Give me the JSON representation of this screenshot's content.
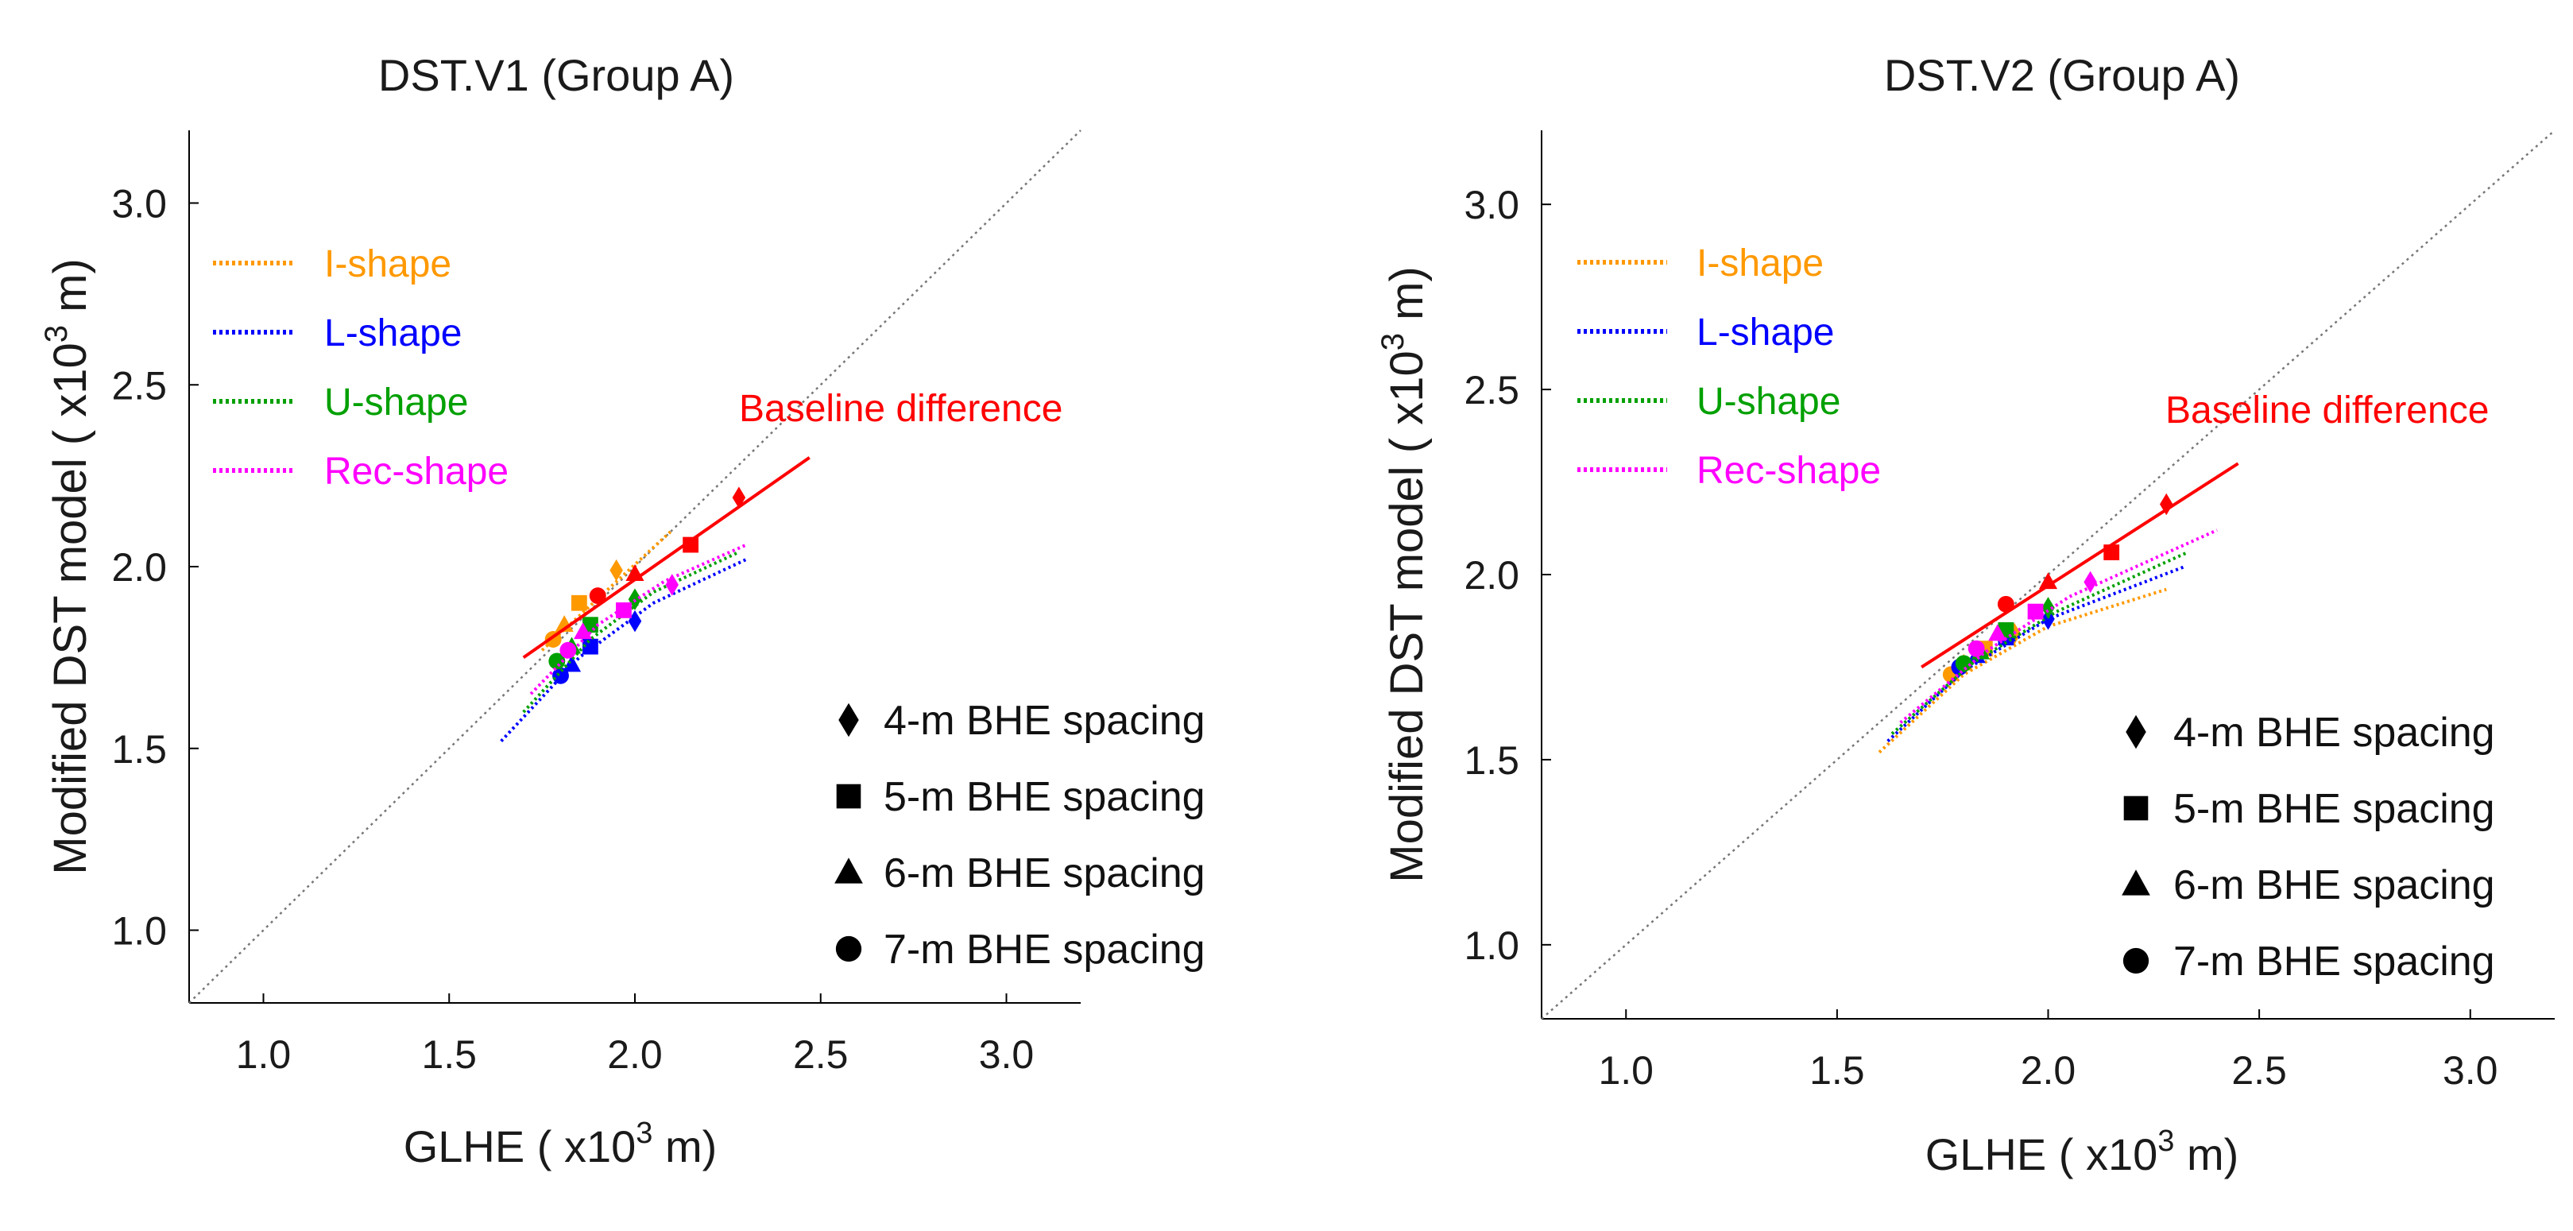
{
  "chart_data": [
    {
      "type": "scatter",
      "title": "DST.V1 (Group A)",
      "xlabel": {
        "base": "GLHE ( x10",
        "exp": "3",
        "unit": " m)"
      },
      "ylabel": {
        "base": "Modified DST model ( x10",
        "exp": "3",
        "unit": " m)"
      },
      "xlim": [
        0.8,
        3.2
      ],
      "ylim": [
        0.8,
        3.2
      ],
      "xticks": [
        1.0,
        1.5,
        2.0,
        2.5,
        3.0
      ],
      "yticks": [
        1.0,
        1.5,
        2.0,
        2.5,
        3.0
      ],
      "xtick_labels": [
        "1.0",
        "1.5",
        "2.0",
        "2.5",
        "3.0"
      ],
      "ytick_labels": [
        "1.0",
        "1.5",
        "2.0",
        "2.5",
        "3.0"
      ],
      "grid": false,
      "identity_line": true,
      "shape_legend": [
        {
          "label": "I-shape",
          "color": "#ff9900"
        },
        {
          "label": "L-shape",
          "color": "#0000ff"
        },
        {
          "label": "U-shape",
          "color": "#00a000"
        },
        {
          "label": "Rec-shape",
          "color": "#ff00ff"
        }
      ],
      "spacing_legend": [
        {
          "label": "4-m BHE spacing",
          "marker": "diamond"
        },
        {
          "label": "5-m BHE spacing",
          "marker": "square"
        },
        {
          "label": "6-m BHE spacing",
          "marker": "triangle"
        },
        {
          "label": "7-m BHE spacing",
          "marker": "circle"
        }
      ],
      "baseline": {
        "label": "Baseline difference",
        "color": "#ff0000",
        "line": [
          [
            1.7,
            1.75
          ],
          [
            2.47,
            2.3
          ]
        ],
        "points": [
          {
            "x": 2.28,
            "y": 2.19,
            "marker": "diamond"
          },
          {
            "x": 2.15,
            "y": 2.06,
            "marker": "square"
          },
          {
            "x": 2.0,
            "y": 1.98,
            "marker": "triangle"
          },
          {
            "x": 1.9,
            "y": 1.92,
            "marker": "circle"
          }
        ]
      },
      "series": [
        {
          "name": "I-shape",
          "color": "#ff9900",
          "fit": [
            [
              1.75,
              1.77
            ],
            [
              2.1,
              2.1
            ]
          ],
          "points": [
            {
              "x": 1.95,
              "y": 1.99,
              "marker": "diamond"
            },
            {
              "x": 1.85,
              "y": 1.9,
              "marker": "square"
            },
            {
              "x": 1.81,
              "y": 1.84,
              "marker": "triangle"
            },
            {
              "x": 1.78,
              "y": 1.8,
              "marker": "circle"
            }
          ]
        },
        {
          "name": "L-shape",
          "color": "#0000ff",
          "fit": [
            [
              1.64,
              1.52
            ],
            [
              1.85,
              1.75
            ],
            [
              2.05,
              1.9
            ],
            [
              2.3,
              2.02
            ]
          ],
          "points": [
            {
              "x": 2.0,
              "y": 1.85,
              "marker": "diamond"
            },
            {
              "x": 1.88,
              "y": 1.78,
              "marker": "square"
            },
            {
              "x": 1.83,
              "y": 1.73,
              "marker": "triangle"
            },
            {
              "x": 1.8,
              "y": 1.7,
              "marker": "circle"
            }
          ]
        },
        {
          "name": "U-shape",
          "color": "#00a000",
          "fit": [
            [
              1.7,
              1.6
            ],
            [
              1.88,
              1.8
            ],
            [
              2.05,
              1.93
            ],
            [
              2.28,
              2.04
            ]
          ],
          "points": [
            {
              "x": 2.0,
              "y": 1.91,
              "marker": "diamond"
            },
            {
              "x": 1.88,
              "y": 1.84,
              "marker": "square"
            },
            {
              "x": 1.83,
              "y": 1.78,
              "marker": "triangle"
            },
            {
              "x": 1.79,
              "y": 1.74,
              "marker": "circle"
            }
          ]
        },
        {
          "name": "Rec-shape",
          "color": "#ff00ff",
          "fit": [
            [
              1.72,
              1.65
            ],
            [
              1.9,
              1.84
            ],
            [
              2.08,
              1.96
            ],
            [
              2.3,
              2.06
            ]
          ],
          "points": [
            {
              "x": 2.1,
              "y": 1.95,
              "marker": "diamond"
            },
            {
              "x": 1.97,
              "y": 1.88,
              "marker": "square"
            },
            {
              "x": 1.86,
              "y": 1.82,
              "marker": "triangle"
            },
            {
              "x": 1.82,
              "y": 1.77,
              "marker": "circle"
            }
          ]
        }
      ]
    },
    {
      "type": "scatter",
      "title": "DST.V2 (Group A)",
      "xlabel": {
        "base": "GLHE ( x10",
        "exp": "3",
        "unit": " m)"
      },
      "ylabel": {
        "base": "Modified DST model ( x10",
        "exp": "3",
        "unit": " m)"
      },
      "xlim": [
        0.8,
        3.2
      ],
      "ylim": [
        0.8,
        3.2
      ],
      "xticks": [
        1.0,
        1.5,
        2.0,
        2.5,
        3.0
      ],
      "yticks": [
        1.0,
        1.5,
        2.0,
        2.5,
        3.0
      ],
      "xtick_labels": [
        "1.0",
        "1.5",
        "2.0",
        "2.5",
        "3.0"
      ],
      "ytick_labels": [
        "1.0",
        "1.5",
        "2.0",
        "2.5",
        "3.0"
      ],
      "grid": false,
      "identity_line": true,
      "shape_legend": [
        {
          "label": "I-shape",
          "color": "#ff9900"
        },
        {
          "label": "L-shape",
          "color": "#0000ff"
        },
        {
          "label": "U-shape",
          "color": "#00a000"
        },
        {
          "label": "Rec-shape",
          "color": "#ff00ff"
        }
      ],
      "spacing_legend": [
        {
          "label": "4-m BHE spacing",
          "marker": "diamond"
        },
        {
          "label": "5-m BHE spacing",
          "marker": "square"
        },
        {
          "label": "6-m BHE spacing",
          "marker": "triangle"
        },
        {
          "label": "7-m BHE spacing",
          "marker": "circle"
        }
      ],
      "baseline": {
        "label": "Baseline difference",
        "color": "#ff0000",
        "line": [
          [
            1.7,
            1.75
          ],
          [
            2.45,
            2.3
          ]
        ],
        "points": [
          {
            "x": 2.28,
            "y": 2.19,
            "marker": "diamond"
          },
          {
            "x": 2.15,
            "y": 2.06,
            "marker": "square"
          },
          {
            "x": 2.0,
            "y": 1.98,
            "marker": "triangle"
          },
          {
            "x": 1.9,
            "y": 1.92,
            "marker": "circle"
          }
        ]
      },
      "series": [
        {
          "name": "I-shape",
          "color": "#ff9900",
          "fit": [
            [
              1.6,
              1.52
            ],
            [
              1.8,
              1.73
            ],
            [
              2.0,
              1.86
            ],
            [
              2.28,
              1.96
            ]
          ],
          "points": [
            {
              "x": 1.92,
              "y": 1.84,
              "marker": "diamond"
            },
            {
              "x": 1.85,
              "y": 1.8,
              "marker": "square"
            },
            {
              "x": 1.8,
              "y": 1.76,
              "marker": "triangle"
            },
            {
              "x": 1.77,
              "y": 1.73,
              "marker": "circle"
            }
          ]
        },
        {
          "name": "L-shape",
          "color": "#0000ff",
          "fit": [
            [
              1.62,
              1.55
            ],
            [
              1.8,
              1.74
            ],
            [
              2.0,
              1.88
            ],
            [
              2.32,
              2.02
            ]
          ],
          "points": [
            {
              "x": 2.0,
              "y": 1.88,
              "marker": "diamond"
            },
            {
              "x": 1.9,
              "y": 1.83,
              "marker": "square"
            },
            {
              "x": 1.83,
              "y": 1.78,
              "marker": "triangle"
            },
            {
              "x": 1.79,
              "y": 1.75,
              "marker": "circle"
            }
          ]
        },
        {
          "name": "U-shape",
          "color": "#00a000",
          "fit": [
            [
              1.63,
              1.57
            ],
            [
              1.82,
              1.76
            ],
            [
              2.02,
              1.9
            ],
            [
              2.33,
              2.06
            ]
          ],
          "points": [
            {
              "x": 2.0,
              "y": 1.91,
              "marker": "diamond"
            },
            {
              "x": 1.9,
              "y": 1.85,
              "marker": "square"
            },
            {
              "x": 1.84,
              "y": 1.79,
              "marker": "triangle"
            },
            {
              "x": 1.8,
              "y": 1.76,
              "marker": "circle"
            }
          ]
        },
        {
          "name": "Rec-shape",
          "color": "#ff00ff",
          "fit": [
            [
              1.65,
              1.6
            ],
            [
              1.85,
              1.79
            ],
            [
              2.05,
              1.94
            ],
            [
              2.4,
              2.12
            ]
          ],
          "points": [
            {
              "x": 2.1,
              "y": 1.98,
              "marker": "diamond"
            },
            {
              "x": 1.97,
              "y": 1.9,
              "marker": "square"
            },
            {
              "x": 1.88,
              "y": 1.84,
              "marker": "triangle"
            },
            {
              "x": 1.83,
              "y": 1.8,
              "marker": "circle"
            }
          ]
        }
      ]
    }
  ]
}
